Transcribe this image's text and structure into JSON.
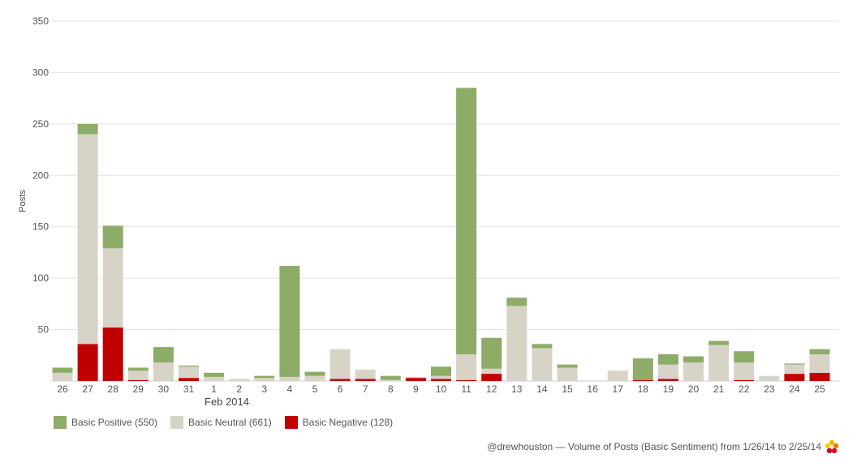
{
  "chart_data": {
    "type": "bar",
    "stacked": true,
    "ylabel": "Posts",
    "ylim": [
      0,
      350
    ],
    "yticks": [
      50,
      100,
      150,
      200,
      250,
      300,
      350
    ],
    "grid": true,
    "x_month_label": "Feb 2014",
    "categories": [
      "26",
      "27",
      "28",
      "29",
      "30",
      "31",
      "1",
      "2",
      "3",
      "4",
      "5",
      "6",
      "7",
      "8",
      "9",
      "10",
      "11",
      "12",
      "13",
      "14",
      "15",
      "16",
      "17",
      "18",
      "19",
      "20",
      "21",
      "22",
      "23",
      "24",
      "25"
    ],
    "series": [
      {
        "name": "Basic Negative",
        "color": "#c00000",
        "values": [
          0,
          36,
          52,
          1,
          0,
          3,
          0,
          0,
          0,
          0,
          0,
          2,
          2,
          0,
          3,
          2,
          1,
          7,
          0,
          0,
          0,
          0,
          0,
          1,
          2,
          0,
          0,
          1,
          0,
          7,
          8
        ]
      },
      {
        "name": "Basic Neutral",
        "color": "#d8d3c7",
        "values": [
          8,
          204,
          77,
          9,
          18,
          11,
          4,
          2,
          3,
          4,
          5,
          29,
          9,
          1,
          1,
          3,
          25,
          5,
          73,
          32,
          13,
          0,
          10,
          0,
          14,
          18,
          35,
          17,
          5,
          9,
          18
        ]
      },
      {
        "name": "Basic Positive",
        "color": "#8cac67",
        "values": [
          5,
          10,
          22,
          3,
          15,
          1,
          4,
          0,
          2,
          108,
          4,
          0,
          0,
          4,
          0,
          9,
          259,
          30,
          8,
          4,
          3,
          0,
          0,
          21,
          10,
          6,
          4,
          11,
          0,
          1,
          5
        ]
      }
    ]
  },
  "legend": [
    {
      "label": "Basic Positive (550)",
      "color": "#8cac67"
    },
    {
      "label": "Basic Neutral (661)",
      "color": "#d8d3c7"
    },
    {
      "label": "Basic Negative (128)",
      "color": "#c00000"
    }
  ],
  "footer": {
    "text": "@drewhouston — Volume of Posts (Basic Sentiment) from 1/26/14 to 2/25/14"
  }
}
